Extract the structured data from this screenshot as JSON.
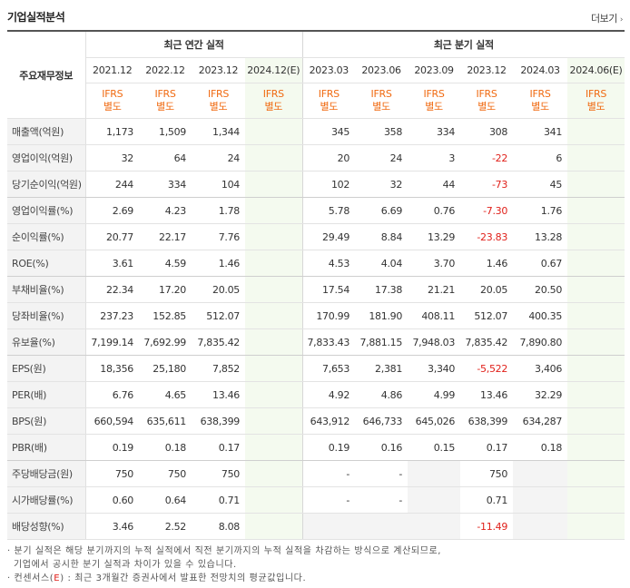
{
  "header": {
    "title": "기업실적분석",
    "more_label": "더보기"
  },
  "table": {
    "row_header": "주요재무정보",
    "annual_group": "최근 연간 실적",
    "quarter_group": "최근 분기 실적",
    "annual_periods": [
      "2021.12",
      "2022.12",
      "2023.12",
      "2024.12(E)"
    ],
    "quarter_periods": [
      "2023.03",
      "2023.06",
      "2023.09",
      "2023.12",
      "2024.03",
      "2024.06(E)"
    ],
    "ifrs_top": "IFRS",
    "ifrs_bottom": "별도",
    "rows": [
      {
        "label": "매출액(억원)",
        "a": [
          "1,173",
          "1,509",
          "1,344",
          ""
        ],
        "q": [
          "345",
          "358",
          "334",
          "308",
          "341",
          ""
        ]
      },
      {
        "label": "영업이익(억원)",
        "a": [
          "32",
          "64",
          "24",
          ""
        ],
        "q": [
          "20",
          "24",
          "3",
          "-22",
          "6",
          ""
        ]
      },
      {
        "label": "당기순이익(억원)",
        "a": [
          "244",
          "334",
          "104",
          ""
        ],
        "q": [
          "102",
          "32",
          "44",
          "-73",
          "45",
          ""
        ]
      },
      {
        "label": "영업이익률(%)",
        "a": [
          "2.69",
          "4.23",
          "1.78",
          ""
        ],
        "q": [
          "5.78",
          "6.69",
          "0.76",
          "-7.30",
          "1.76",
          ""
        ]
      },
      {
        "label": "순이익률(%)",
        "a": [
          "20.77",
          "22.17",
          "7.76",
          ""
        ],
        "q": [
          "29.49",
          "8.84",
          "13.29",
          "-23.83",
          "13.28",
          ""
        ]
      },
      {
        "label": "ROE(%)",
        "a": [
          "3.61",
          "4.59",
          "1.46",
          ""
        ],
        "q": [
          "4.53",
          "4.04",
          "3.70",
          "1.46",
          "0.67",
          ""
        ]
      },
      {
        "label": "부채비율(%)",
        "a": [
          "22.34",
          "17.20",
          "20.05",
          ""
        ],
        "q": [
          "17.54",
          "17.38",
          "21.21",
          "20.05",
          "20.50",
          ""
        ]
      },
      {
        "label": "당좌비율(%)",
        "a": [
          "237.23",
          "152.85",
          "512.07",
          ""
        ],
        "q": [
          "170.99",
          "181.90",
          "408.11",
          "512.07",
          "400.35",
          ""
        ]
      },
      {
        "label": "유보율(%)",
        "a": [
          "7,199.14",
          "7,692.99",
          "7,835.42",
          ""
        ],
        "q": [
          "7,833.43",
          "7,881.15",
          "7,948.03",
          "7,835.42",
          "7,890.80",
          ""
        ]
      },
      {
        "label": "EPS(원)",
        "a": [
          "18,356",
          "25,180",
          "7,852",
          ""
        ],
        "q": [
          "7,653",
          "2,381",
          "3,340",
          "-5,522",
          "3,406",
          ""
        ]
      },
      {
        "label": "PER(배)",
        "a": [
          "6.76",
          "4.65",
          "13.46",
          ""
        ],
        "q": [
          "4.92",
          "4.86",
          "4.99",
          "13.46",
          "32.29",
          ""
        ]
      },
      {
        "label": "BPS(원)",
        "a": [
          "660,594",
          "635,611",
          "638,399",
          ""
        ],
        "q": [
          "643,912",
          "646,733",
          "645,026",
          "638,399",
          "634,287",
          ""
        ]
      },
      {
        "label": "PBR(배)",
        "a": [
          "0.19",
          "0.18",
          "0.17",
          ""
        ],
        "q": [
          "0.19",
          "0.16",
          "0.15",
          "0.17",
          "0.18",
          ""
        ]
      },
      {
        "label": "주당배당금(원)",
        "a": [
          "750",
          "750",
          "750",
          ""
        ],
        "q": [
          "-",
          "-",
          "",
          "750",
          "",
          ""
        ]
      },
      {
        "label": "시가배당률(%)",
        "a": [
          "0.60",
          "0.64",
          "0.71",
          ""
        ],
        "q": [
          "-",
          "-",
          "",
          "0.71",
          "",
          ""
        ]
      },
      {
        "label": "배당성향(%)",
        "a": [
          "3.46",
          "2.52",
          "8.08",
          ""
        ],
        "q": [
          "",
          "",
          "",
          "-11.49",
          "",
          ""
        ]
      }
    ]
  },
  "notes": {
    "line1": "· 분기 실적은 해당 분기까지의 누적 실적에서 직전 분기까지의 누적 실적을 차감하는 방식으로 계산되므로,",
    "line2": "기업에서 공시한 분기 실적과 차이가 있을 수 있습니다.",
    "line3_prefix": "· 컨센서스(",
    "line3_e": "E",
    "line3_suffix": ") : 최근 3개월간 증권사에서 발표한 전망치의 평균값입니다."
  },
  "colors": {
    "negative": "#e0201a",
    "ifrs": "#f06a11",
    "estimate_bg": "#f4faef"
  }
}
